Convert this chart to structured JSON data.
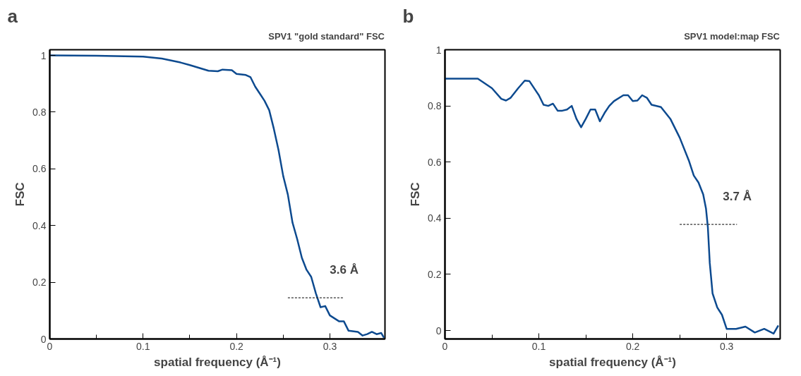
{
  "chart_data": [
    {
      "type": "line",
      "title": "a",
      "xlabel": "spatial frequency (Å⁻¹)",
      "ylabel": "FSC",
      "xlim": [
        0,
        0.359
      ],
      "ylim": [
        0,
        1.02
      ],
      "xticks": [
        0,
        0.1,
        0.2,
        0.3,
        {
          "value": 0.05,
          "label": null
        },
        {
          "value": 0.15,
          "label": null
        },
        {
          "value": 0.25,
          "label": null
        }
      ],
      "yticks": [
        0,
        0.2,
        0.4,
        0.6,
        0.8,
        1
      ],
      "legend": "top right",
      "grid": false,
      "marker": "none",
      "series": [
        {
          "name": "SPV1 \"gold standard\" FSC",
          "color": "#0d4a8f",
          "line_style": "solid",
          "x": [
            0,
            0.05,
            0.1,
            0.12,
            0.14,
            0.15,
            0.16,
            0.17,
            0.18,
            0.185,
            0.195,
            0.2,
            0.21,
            0.215,
            0.22,
            0.225,
            0.23,
            0.235,
            0.24,
            0.245,
            0.25,
            0.255,
            0.26,
            0.265,
            0.27,
            0.275,
            0.28,
            0.285,
            0.29,
            0.295,
            0.3,
            0.31,
            0.315,
            0.32,
            0.33,
            0.335,
            0.34,
            0.345,
            0.35,
            0.355,
            0.358
          ],
          "values": [
            1.0,
            0.999,
            0.996,
            0.989,
            0.975,
            0.966,
            0.956,
            0.946,
            0.944,
            0.95,
            0.948,
            0.935,
            0.931,
            0.923,
            0.89,
            0.865,
            0.84,
            0.807,
            0.741,
            0.666,
            0.575,
            0.509,
            0.41,
            0.352,
            0.286,
            0.244,
            0.219,
            0.161,
            0.112,
            0.116,
            0.083,
            0.062,
            0.062,
            0.029,
            0.025,
            0.012,
            0.017,
            0.025,
            0.017,
            0.021,
            0.004
          ]
        },
        {
          "color": "#333333",
          "line_style": "dashed",
          "x": [
            0.255,
            0.315
          ],
          "values": [
            0.145,
            0.145
          ]
        }
      ],
      "annotations": [
        "3.6 Å"
      ]
    },
    {
      "type": "line",
      "title": "b",
      "xlabel": "spatial frequency (Å⁻¹)",
      "ylabel": "FSC",
      "xlim": [
        0,
        0.357
      ],
      "ylim": [
        -0.03,
        1.0
      ],
      "xticks": [
        0,
        0.1,
        0.2,
        0.3,
        {
          "value": 0.05,
          "label": null
        },
        {
          "value": 0.15,
          "label": null
        },
        {
          "value": 0.25,
          "label": null
        }
      ],
      "yticks": [
        0,
        0.2,
        0.4,
        0.6,
        0.8,
        1
      ],
      "legend": "top right",
      "grid": false,
      "marker": "none",
      "series": [
        {
          "name": "SPV1 model:map FSC",
          "color": "#0d4a8f",
          "line_style": "solid",
          "x": [
            0,
            0.035,
            0.05,
            0.06,
            0.065,
            0.07,
            0.078,
            0.085,
            0.09,
            0.1,
            0.105,
            0.11,
            0.115,
            0.12,
            0.125,
            0.13,
            0.135,
            0.14,
            0.145,
            0.15,
            0.155,
            0.16,
            0.165,
            0.17,
            0.175,
            0.18,
            0.19,
            0.195,
            0.2,
            0.205,
            0.21,
            0.215,
            0.22,
            0.23,
            0.24,
            0.25,
            0.26,
            0.265,
            0.27,
            0.275,
            0.278,
            0.28,
            0.282,
            0.285,
            0.29,
            0.295,
            0.3,
            0.31,
            0.32,
            0.33,
            0.34,
            0.35,
            0.355
          ],
          "values": [
            0.897,
            0.897,
            0.863,
            0.825,
            0.819,
            0.829,
            0.863,
            0.89,
            0.888,
            0.838,
            0.804,
            0.8,
            0.808,
            0.783,
            0.783,
            0.787,
            0.8,
            0.754,
            0.724,
            0.754,
            0.787,
            0.787,
            0.745,
            0.775,
            0.8,
            0.817,
            0.838,
            0.838,
            0.817,
            0.819,
            0.838,
            0.829,
            0.804,
            0.796,
            0.754,
            0.687,
            0.603,
            0.552,
            0.527,
            0.485,
            0.434,
            0.367,
            0.241,
            0.132,
            0.082,
            0.056,
            0.006,
            0.006,
            0.014,
            -0.007,
            0.006,
            -0.011,
            0.018
          ]
        },
        {
          "color": "#333333",
          "line_style": "dashed",
          "x": [
            0.25,
            0.311
          ],
          "values": [
            0.378,
            0.378
          ]
        }
      ],
      "annotations": [
        "3.7 Å"
      ]
    }
  ]
}
